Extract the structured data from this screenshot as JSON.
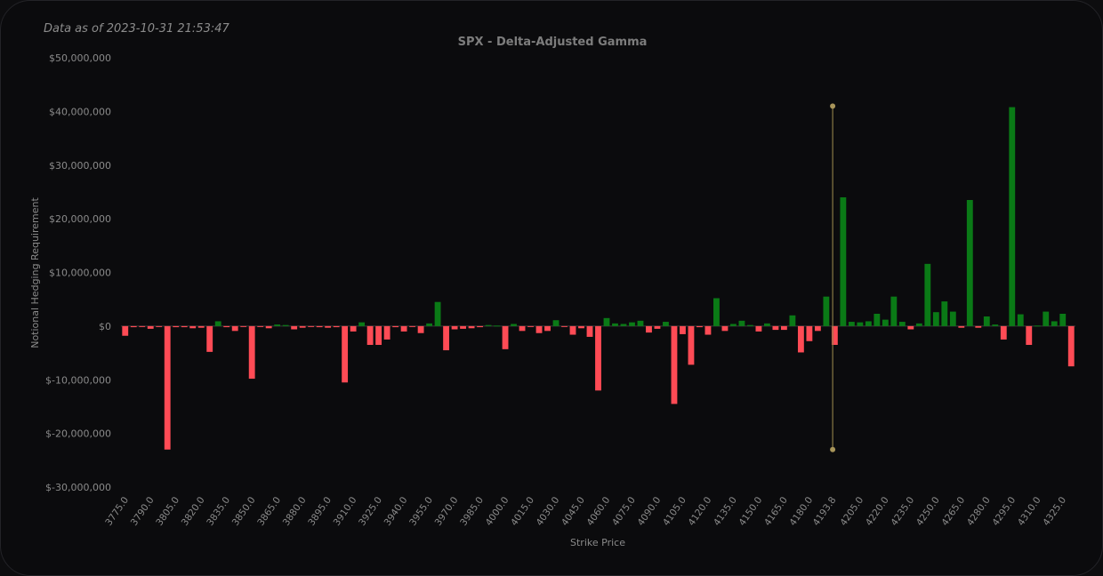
{
  "header": {
    "as_of": "Data as of 2023-10-31 21:53:47"
  },
  "colors": {
    "positive": "#0a7a16",
    "negative": "#ff4b55",
    "spot_line": "#8a7a45",
    "spot_marker": "#a8955a",
    "text": "#8a8a8a",
    "title": "#7d7d7d",
    "zero_line": "#3a3a3a"
  },
  "chart_data": {
    "type": "bar",
    "title": "SPX - Delta-Adjusted Gamma",
    "xlabel": "Strike Price",
    "ylabel": "Notional Hedging Requirement",
    "ylim": [
      -30000000,
      50000000
    ],
    "yticks": [
      -30000000,
      -20000000,
      -10000000,
      0,
      10000000,
      20000000,
      30000000,
      40000000,
      50000000
    ],
    "ytick_labels": [
      "$-30,000,000",
      "$-20,000,000",
      "$-10,000,000",
      "$0",
      "$10,000,000",
      "$20,000,000",
      "$30,000,000",
      "$40,000,000",
      "$50,000,000"
    ],
    "xtick_labels": [
      "3775.0",
      "3790.0",
      "3805.0",
      "3820.0",
      "3835.0",
      "3850.0",
      "3865.0",
      "3880.0",
      "3895.0",
      "3910.0",
      "3925.0",
      "3940.0",
      "3955.0",
      "3970.0",
      "3985.0",
      "4000.0",
      "4015.0",
      "4030.0",
      "4045.0",
      "4060.0",
      "4075.0",
      "4090.0",
      "4105.0",
      "4120.0",
      "4135.0",
      "4150.0",
      "4165.0",
      "4180.0",
      "4193.8",
      "4205.0",
      "4220.0",
      "4235.0",
      "4250.0",
      "4265.0",
      "4280.0",
      "4295.0",
      "4310.0",
      "4325.0"
    ],
    "spot": {
      "label": "4193.8",
      "y_range": [
        -23000000,
        41000000
      ]
    },
    "strikes": [
      3775,
      3780,
      3785,
      3790,
      3795,
      3800,
      3805,
      3810,
      3815,
      3820,
      3825,
      3830,
      3835,
      3840,
      3845,
      3850,
      3855,
      3860,
      3865,
      3870,
      3875,
      3880,
      3885,
      3890,
      3895,
      3900,
      3905,
      3910,
      3915,
      3920,
      3925,
      3930,
      3935,
      3940,
      3945,
      3950,
      3955,
      3960,
      3965,
      3970,
      3975,
      3980,
      3985,
      3990,
      3995,
      4000,
      4005,
      4010,
      4015,
      4020,
      4025,
      4030,
      4035,
      4040,
      4045,
      4050,
      4055,
      4060,
      4065,
      4070,
      4075,
      4080,
      4085,
      4090,
      4095,
      4100,
      4105,
      4110,
      4115,
      4120,
      4125,
      4130,
      4135,
      4140,
      4145,
      4150,
      4155,
      4160,
      4165,
      4170,
      4175,
      4180,
      4185,
      4190,
      4195,
      4200,
      4205,
      4210,
      4215,
      4220,
      4225,
      4230,
      4235,
      4240,
      4245,
      4250,
      4255,
      4260,
      4265,
      4270,
      4275,
      4280,
      4285,
      4290,
      4295,
      4300,
      4305,
      4310,
      4315,
      4320,
      4325,
      4330
    ],
    "values": [
      -1800000,
      -200000,
      -100000,
      -500000,
      -100000,
      -23000000,
      -200000,
      -200000,
      -400000,
      -300000,
      -4800000,
      900000,
      -200000,
      -900000,
      -100000,
      -9800000,
      -100000,
      -400000,
      300000,
      200000,
      -600000,
      -300000,
      -100000,
      -200000,
      -300000,
      -200000,
      -10500000,
      -1000000,
      700000,
      -3500000,
      -3500000,
      -2500000,
      -200000,
      -1000000,
      -100000,
      -1300000,
      500000,
      4500000,
      -4500000,
      -600000,
      -500000,
      -400000,
      -200000,
      200000,
      100000,
      -4300000,
      400000,
      -900000,
      -100000,
      -1300000,
      -900000,
      1100000,
      -100000,
      -1600000,
      -400000,
      -2000000,
      -12000000,
      1500000,
      500000,
      400000,
      700000,
      1000000,
      -1200000,
      -500000,
      800000,
      -14500000,
      -1500000,
      -7200000,
      -200000,
      -1600000,
      5200000,
      -900000,
      400000,
      1000000,
      200000,
      -1000000,
      500000,
      -700000,
      -700000,
      2000000,
      -4900000,
      -2800000,
      -900000,
      5500000,
      -3500000,
      24000000,
      800000,
      700000,
      900000,
      2300000,
      1200000,
      5500000,
      800000,
      -600000,
      500000,
      11600000,
      2600000,
      4600000,
      2700000,
      -300000,
      23500000,
      -300000,
      1800000,
      300000,
      -2500000,
      40800000,
      2200000,
      -3500000,
      100000,
      2700000,
      900000,
      2300000,
      -7500000
    ]
  }
}
